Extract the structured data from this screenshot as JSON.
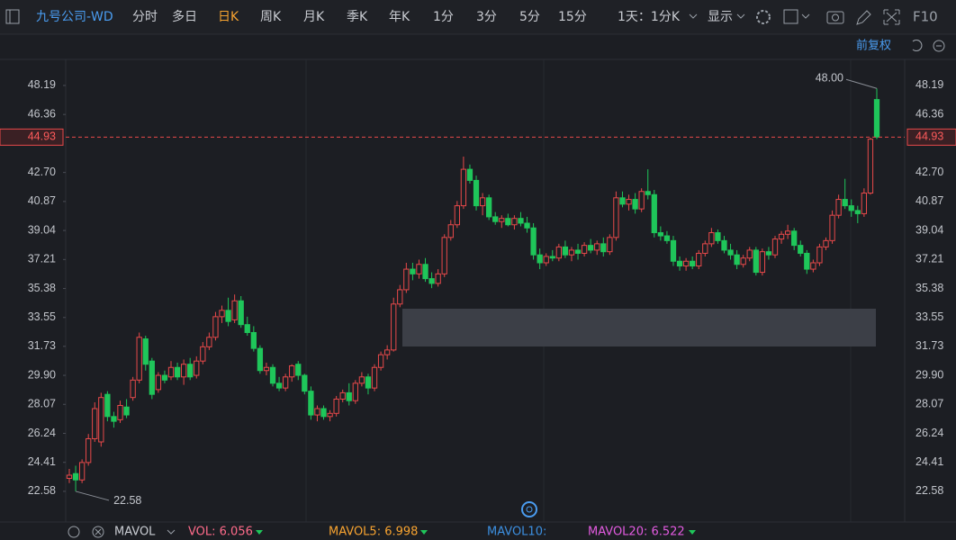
{
  "toolbar": {
    "title": "九号公司-WD",
    "periods": [
      "分时",
      "多日",
      "日K",
      "周K",
      "月K",
      "季K",
      "年K",
      "1分",
      "3分",
      "5分",
      "15分",
      "1天：1分K"
    ],
    "active": "日K",
    "display": "显示",
    "f10": "F10",
    "adjust": "前复权"
  },
  "indicator": {
    "name": "MAVOL",
    "items": [
      {
        "text": "VOL: 6.056",
        "color": "#ff6b8a"
      },
      {
        "text": "MAVOL5: 6.998",
        "color": "#f7a330"
      },
      {
        "text": "MAVOL10:",
        "color": "#3c8fe0"
      },
      {
        "text": "MAVOL20: 6.522",
        "color": "#e25be0"
      }
    ]
  },
  "chart_data": {
    "type": "candlestick",
    "up_color": "#e8494a",
    "down_color": "#1fc65a",
    "ylim": [
      20.76,
      49.72
    ],
    "yticks": [
      22.58,
      24.41,
      26.24,
      28.07,
      {
        "value": 29.9,
        "label": "29.90"
      },
      31.73,
      33.55,
      35.38,
      37.21,
      39.04,
      40.87,
      {
        "value": 42.7,
        "label": "42.70"
      },
      46.36,
      48.19
    ],
    "last_price": 44.93,
    "low_label": "22.58",
    "high_label": "48.00",
    "candles": [
      [
        23.4,
        24.0,
        23.1,
        23.6
      ],
      [
        23.7,
        24.2,
        22.58,
        23.3
      ],
      [
        23.3,
        24.6,
        23.1,
        24.4
      ],
      [
        24.4,
        26.2,
        24.2,
        25.9
      ],
      [
        25.9,
        28.2,
        25.7,
        27.8
      ],
      [
        25.7,
        28.8,
        25.4,
        28.5
      ],
      [
        28.7,
        28.9,
        27.0,
        27.3
      ],
      [
        27.3,
        27.6,
        26.6,
        27.0
      ],
      [
        27.1,
        28.3,
        26.9,
        28.0
      ],
      [
        27.9,
        28.4,
        27.2,
        27.4
      ],
      [
        28.5,
        29.8,
        28.3,
        29.6
      ],
      [
        29.6,
        32.6,
        29.4,
        32.3
      ],
      [
        32.2,
        32.4,
        30.2,
        30.6
      ],
      [
        30.8,
        31.0,
        28.4,
        28.7
      ],
      [
        29.0,
        30.1,
        28.8,
        29.9
      ],
      [
        29.9,
        30.2,
        29.4,
        29.6
      ],
      [
        29.8,
        30.8,
        29.6,
        30.4
      ],
      [
        30.4,
        30.7,
        29.6,
        29.8
      ],
      [
        29.8,
        30.9,
        29.3,
        30.6
      ],
      [
        30.6,
        31.0,
        29.6,
        29.8
      ],
      [
        29.9,
        31.1,
        29.7,
        30.8
      ],
      [
        30.8,
        32.0,
        30.6,
        31.7
      ],
      [
        31.7,
        32.6,
        31.5,
        32.3
      ],
      [
        32.3,
        33.9,
        32.1,
        33.6
      ],
      [
        33.6,
        34.3,
        33.2,
        34.0
      ],
      [
        34.0,
        34.8,
        33.0,
        33.3
      ],
      [
        33.4,
        35.0,
        33.2,
        34.6
      ],
      [
        34.6,
        34.9,
        32.9,
        33.1
      ],
      [
        33.1,
        33.6,
        32.4,
        32.6
      ],
      [
        32.6,
        33.0,
        31.4,
        31.6
      ],
      [
        31.6,
        31.8,
        30.0,
        30.2
      ],
      [
        30.2,
        30.7,
        29.9,
        30.4
      ],
      [
        30.4,
        30.6,
        29.2,
        29.4
      ],
      [
        29.4,
        29.8,
        28.9,
        29.1
      ],
      [
        29.1,
        30.0,
        28.9,
        29.8
      ],
      [
        29.8,
        30.6,
        29.5,
        30.5
      ],
      [
        30.6,
        30.8,
        29.6,
        29.9
      ],
      [
        29.9,
        30.0,
        28.7,
        28.9
      ],
      [
        28.9,
        29.2,
        27.1,
        27.4
      ],
      [
        27.4,
        28.0,
        27.0,
        27.8
      ],
      [
        27.8,
        28.0,
        27.1,
        27.3
      ],
      [
        27.3,
        27.7,
        27.0,
        27.5
      ],
      [
        27.5,
        28.6,
        27.3,
        28.4
      ],
      [
        28.4,
        29.0,
        28.2,
        28.8
      ],
      [
        28.8,
        29.4,
        28.0,
        28.3
      ],
      [
        28.3,
        29.6,
        28.1,
        29.4
      ],
      [
        29.4,
        30.1,
        29.2,
        29.8
      ],
      [
        29.8,
        30.0,
        28.7,
        29.1
      ],
      [
        29.1,
        30.6,
        28.9,
        30.4
      ],
      [
        30.4,
        31.4,
        30.2,
        31.2
      ],
      [
        31.2,
        31.8,
        30.9,
        31.5
      ],
      [
        31.5,
        34.8,
        31.4,
        34.4
      ],
      [
        34.4,
        35.6,
        34.2,
        35.3
      ],
      [
        35.3,
        37.0,
        35.1,
        36.6
      ],
      [
        36.6,
        37.0,
        35.9,
        36.3
      ],
      [
        36.3,
        37.2,
        36.0,
        36.9
      ],
      [
        36.9,
        37.3,
        35.8,
        36.0
      ],
      [
        36.0,
        36.4,
        35.4,
        35.7
      ],
      [
        35.7,
        36.6,
        35.5,
        36.3
      ],
      [
        36.3,
        38.8,
        36.1,
        38.6
      ],
      [
        38.6,
        39.7,
        38.4,
        39.4
      ],
      [
        39.4,
        40.9,
        39.2,
        40.6
      ],
      [
        40.6,
        43.7,
        40.4,
        42.9
      ],
      [
        42.9,
        43.2,
        42.0,
        42.2
      ],
      [
        42.2,
        42.5,
        40.3,
        40.6
      ],
      [
        40.6,
        41.4,
        40.0,
        41.1
      ],
      [
        41.1,
        41.3,
        39.7,
        39.9
      ],
      [
        39.9,
        40.2,
        39.4,
        39.6
      ],
      [
        39.6,
        40.0,
        39.2,
        39.8
      ],
      [
        39.8,
        40.1,
        39.3,
        39.4
      ],
      [
        39.4,
        40.0,
        39.1,
        39.8
      ],
      [
        39.8,
        40.2,
        39.3,
        39.5
      ],
      [
        39.5,
        39.9,
        38.9,
        39.2
      ],
      [
        39.2,
        39.5,
        37.2,
        37.5
      ],
      [
        37.5,
        37.9,
        36.6,
        37.0
      ],
      [
        37.0,
        37.6,
        36.8,
        37.4
      ],
      [
        37.4,
        37.8,
        37.1,
        37.3
      ],
      [
        37.3,
        38.2,
        37.1,
        38.0
      ],
      [
        38.0,
        38.4,
        37.3,
        37.5
      ],
      [
        37.5,
        38.0,
        37.1,
        37.8
      ],
      [
        37.8,
        38.2,
        37.2,
        37.6
      ],
      [
        37.6,
        38.3,
        37.4,
        38.1
      ],
      [
        38.1,
        38.5,
        37.6,
        37.8
      ],
      [
        37.8,
        38.4,
        37.5,
        38.2
      ],
      [
        38.2,
        38.6,
        37.4,
        37.7
      ],
      [
        37.7,
        38.8,
        37.5,
        38.6
      ],
      [
        38.6,
        41.5,
        38.4,
        41.1
      ],
      [
        41.1,
        41.5,
        40.5,
        40.7
      ],
      [
        40.7,
        41.3,
        40.3,
        41.0
      ],
      [
        41.0,
        41.4,
        40.1,
        40.4
      ],
      [
        40.4,
        41.7,
        40.2,
        41.5
      ],
      [
        41.5,
        42.9,
        41.0,
        41.3
      ],
      [
        41.3,
        41.6,
        38.6,
        38.9
      ],
      [
        38.9,
        39.3,
        38.4,
        38.7
      ],
      [
        38.7,
        39.0,
        38.2,
        38.4
      ],
      [
        38.4,
        38.7,
        36.8,
        37.1
      ],
      [
        37.1,
        37.4,
        36.5,
        36.8
      ],
      [
        36.8,
        37.3,
        36.5,
        37.1
      ],
      [
        37.1,
        37.4,
        36.6,
        36.8
      ],
      [
        36.8,
        37.8,
        36.6,
        37.6
      ],
      [
        37.6,
        38.4,
        37.4,
        38.2
      ],
      [
        38.2,
        39.2,
        38.0,
        38.9
      ],
      [
        38.9,
        39.1,
        38.2,
        38.4
      ],
      [
        38.4,
        38.7,
        37.6,
        37.8
      ],
      [
        37.8,
        38.2,
        37.2,
        37.5
      ],
      [
        37.5,
        37.8,
        36.6,
        36.9
      ],
      [
        36.9,
        37.5,
        36.7,
        37.3
      ],
      [
        37.3,
        38.0,
        37.1,
        37.8
      ],
      [
        37.8,
        38.0,
        36.2,
        36.4
      ],
      [
        36.4,
        37.9,
        36.2,
        37.7
      ],
      [
        37.7,
        38.0,
        37.2,
        37.5
      ],
      [
        37.5,
        38.7,
        37.3,
        38.5
      ],
      [
        38.5,
        39.0,
        38.2,
        38.8
      ],
      [
        38.8,
        39.4,
        38.5,
        39.0
      ],
      [
        39.0,
        39.2,
        37.8,
        38.1
      ],
      [
        38.1,
        38.4,
        37.4,
        37.6
      ],
      [
        37.6,
        37.8,
        36.3,
        36.6
      ],
      [
        36.6,
        37.2,
        36.4,
        37.0
      ],
      [
        37.0,
        38.2,
        36.8,
        38.0
      ],
      [
        38.0,
        38.6,
        37.8,
        38.4
      ],
      [
        38.4,
        40.3,
        38.2,
        40.0
      ],
      [
        40.0,
        41.3,
        39.8,
        41.0
      ],
      [
        41.0,
        42.3,
        40.4,
        40.6
      ],
      [
        40.6,
        41.0,
        39.9,
        40.3
      ],
      [
        40.3,
        40.6,
        39.5,
        40.1
      ],
      [
        40.1,
        41.7,
        39.9,
        41.4
      ],
      [
        41.4,
        44.9,
        41.3,
        44.8
      ],
      [
        47.3,
        48.0,
        44.8,
        44.93
      ]
    ]
  }
}
